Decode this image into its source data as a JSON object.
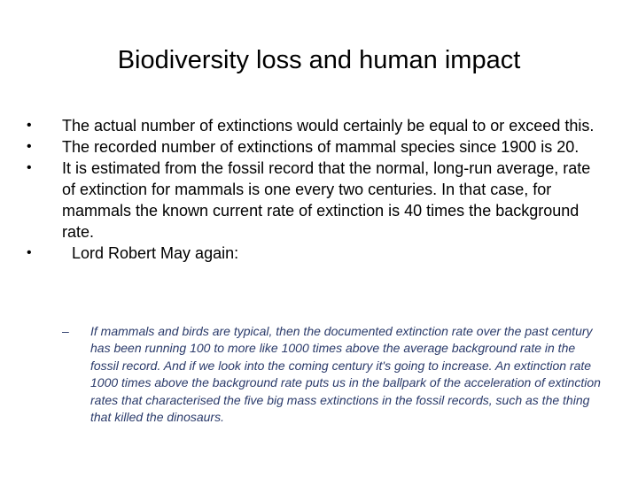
{
  "slide": {
    "title": "Biodiversity loss and human impact",
    "bullets": [
      {
        "marker": "•",
        "text": "The actual number of extinctions would certainly be equal to or exceed this."
      },
      {
        "marker": "•",
        "text": "The recorded number of extinctions of mammal species since 1900 is 20."
      },
      {
        "marker": "•",
        "text": "It is estimated from the fossil record that the normal, long-run average, rate of extinction for mammals is one every two centuries. In that case, for mammals the known current rate of extinction is 40 times the background rate."
      },
      {
        "marker": "•",
        "text": "Lord Robert May again:"
      }
    ],
    "sub_bullets": [
      {
        "marker": "–",
        "text": "If mammals and birds are typical, then the documented extinction rate over the past century has been running 100 to more like 1000 times above the average background rate in the fossil record. And if we look into the coming century it's going to increase. An extinction rate 1000 times above the background rate puts us in the ballpark of the acceleration of extinction rates that characterised the five big mass extinctions in the fossil records, such as the thing that killed the dinosaurs."
      }
    ]
  }
}
